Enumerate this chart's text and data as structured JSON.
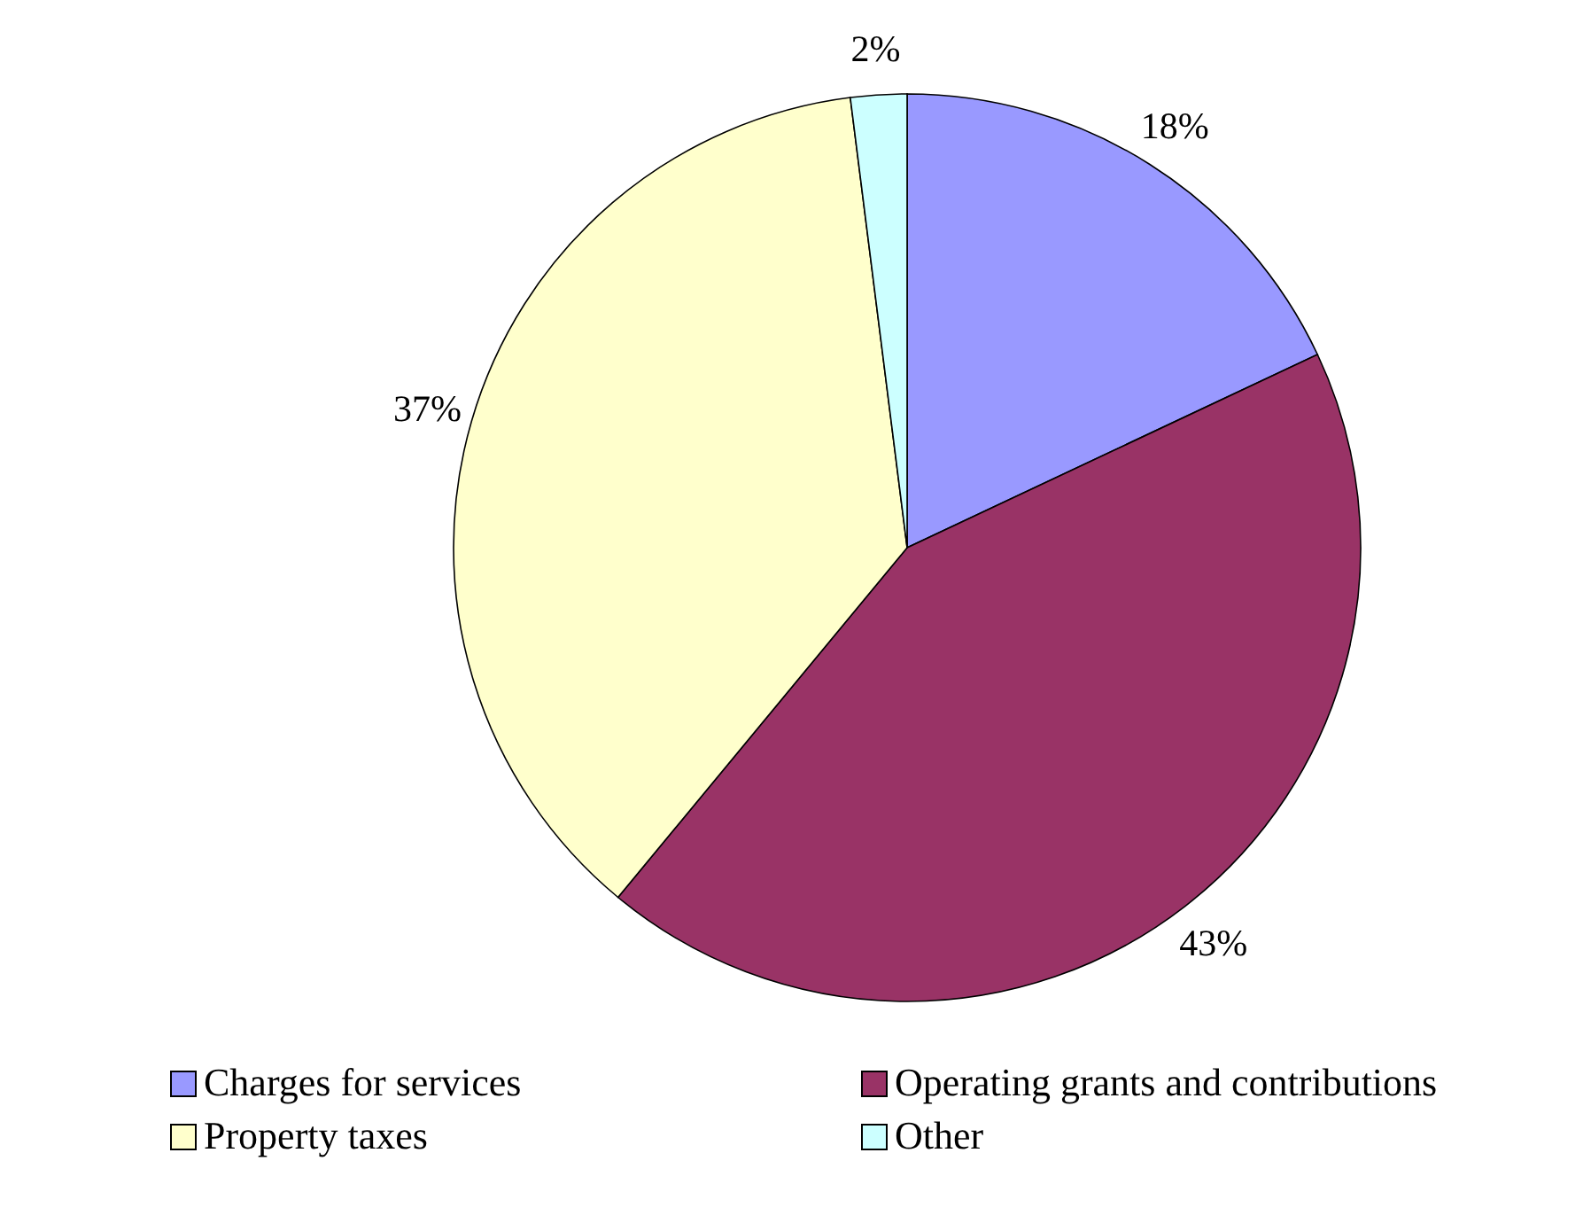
{
  "chart_data": {
    "type": "pie",
    "categories": [
      "Charges for services",
      "Operating grants and contributions",
      "Property taxes",
      "Other"
    ],
    "values": [
      18,
      43,
      37,
      2
    ],
    "colors": [
      "#9999ff",
      "#993366",
      "#ffffcc",
      "#ccffff"
    ],
    "value_labels": [
      "18%",
      "43%",
      "37%",
      "2%"
    ],
    "legend": "bottom"
  }
}
